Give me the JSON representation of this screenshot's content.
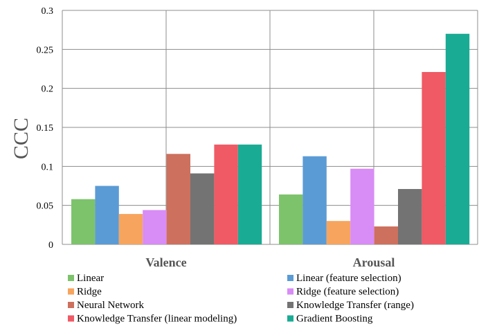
{
  "chart_data": {
    "type": "bar",
    "title": "",
    "xlabel": "",
    "ylabel": "CCC",
    "ylim": [
      0,
      0.3
    ],
    "yticks": [
      "0",
      "0.05",
      "0.1",
      "0.15",
      "0.2",
      "0.25",
      "0.3"
    ],
    "grid": true,
    "legend_position": "bottom",
    "categories": [
      "Valence",
      "Arousal"
    ],
    "series": [
      {
        "name": "Linear",
        "color": "#7dc36b",
        "values": [
          0.058,
          0.064
        ]
      },
      {
        "name": "Linear (feature selection)",
        "color": "#5b9bd5",
        "values": [
          0.075,
          0.113
        ]
      },
      {
        "name": "Ridge",
        "color": "#f7a45e",
        "values": [
          0.039,
          0.03
        ]
      },
      {
        "name": "Ridge (feature selection)",
        "color": "#d88cf5",
        "values": [
          0.044,
          0.097
        ]
      },
      {
        "name": "Neural Network",
        "color": "#cd705d",
        "values": [
          0.116,
          0.023
        ]
      },
      {
        "name": "Knowledge Transfer (range)",
        "color": "#737373",
        "values": [
          0.091,
          0.071
        ]
      },
      {
        "name": "Knowledge Transfer (linear modeling)",
        "color": "#ef5a65",
        "values": [
          0.128,
          0.221
        ]
      },
      {
        "name": "Gradient Boosting",
        "color": "#1aab94",
        "values": [
          0.128,
          0.27
        ]
      }
    ]
  }
}
